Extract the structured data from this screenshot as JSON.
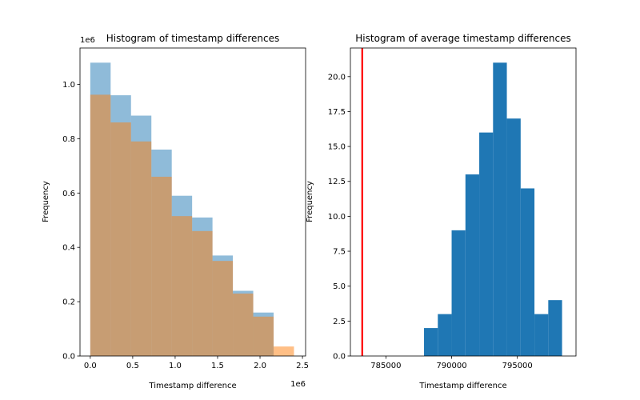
{
  "chart_data": [
    {
      "type": "bar",
      "title": "Histogram of timestamp differences",
      "xlabel": "Timestamp difference",
      "ylabel": "Frequency",
      "x_offset_label": "1e6",
      "y_offset_label": "1e6",
      "xlim": [
        -0.121,
        2.537
      ],
      "ylim": [
        0,
        1.134
      ],
      "x_ticks": [
        0.0,
        0.5,
        1.0,
        1.5,
        2.0,
        2.5
      ],
      "x_tick_labels": [
        "0.0",
        "0.5",
        "1.0",
        "1.5",
        "2.0",
        "2.5"
      ],
      "y_ticks": [
        0.0,
        0.2,
        0.4,
        0.6,
        0.8,
        1.0
      ],
      "y_tick_labels": [
        "0.0",
        "0.2",
        "0.4",
        "0.6",
        "0.8",
        "1.0"
      ],
      "grid": false,
      "series": [
        {
          "color": "#1f77b4",
          "opacity": 0.5,
          "bin_edges": [
            0.0,
            0.24,
            0.48,
            0.72,
            0.96,
            1.2,
            1.44,
            1.68,
            1.92,
            2.16
          ],
          "values": [
            1.08,
            0.96,
            0.885,
            0.76,
            0.59,
            0.51,
            0.37,
            0.24,
            0.16
          ]
        },
        {
          "color": "#ff7f0e",
          "opacity": 0.5,
          "bin_edges": [
            0.0,
            0.24,
            0.48,
            0.72,
            0.96,
            1.2,
            1.44,
            1.68,
            1.92,
            2.16,
            2.4
          ],
          "values": [
            0.962,
            0.86,
            0.79,
            0.66,
            0.515,
            0.46,
            0.35,
            0.23,
            0.145,
            0.035
          ]
        }
      ]
    },
    {
      "type": "bar",
      "title": "Histogram of average timestamp differences",
      "xlabel": "Timestamp difference",
      "ylabel": "Frequency",
      "xlim": [
        782300,
        799460
      ],
      "ylim": [
        0,
        22.05
      ],
      "x_ticks": [
        785000,
        790000,
        795000
      ],
      "x_tick_labels": [
        "785000",
        "790000",
        "795000"
      ],
      "y_ticks": [
        0.0,
        2.5,
        5.0,
        7.5,
        10.0,
        12.5,
        15.0,
        17.5,
        20.0
      ],
      "y_tick_labels": [
        "0.0",
        "2.5",
        "5.0",
        "7.5",
        "10.0",
        "12.5",
        "15.0",
        "17.5",
        "20.0"
      ],
      "grid": false,
      "series": [
        {
          "color": "#1f77b4",
          "opacity": 1.0,
          "bin_edges": [
            787900,
            788950,
            790000,
            791050,
            792100,
            793150,
            794200,
            795250,
            796300,
            797350,
            798400
          ],
          "values": [
            2,
            3,
            9,
            13,
            16,
            21,
            17,
            12,
            3,
            4
          ]
        }
      ],
      "reference_line": {
        "x": 783200,
        "color": "#ff0000"
      }
    }
  ]
}
